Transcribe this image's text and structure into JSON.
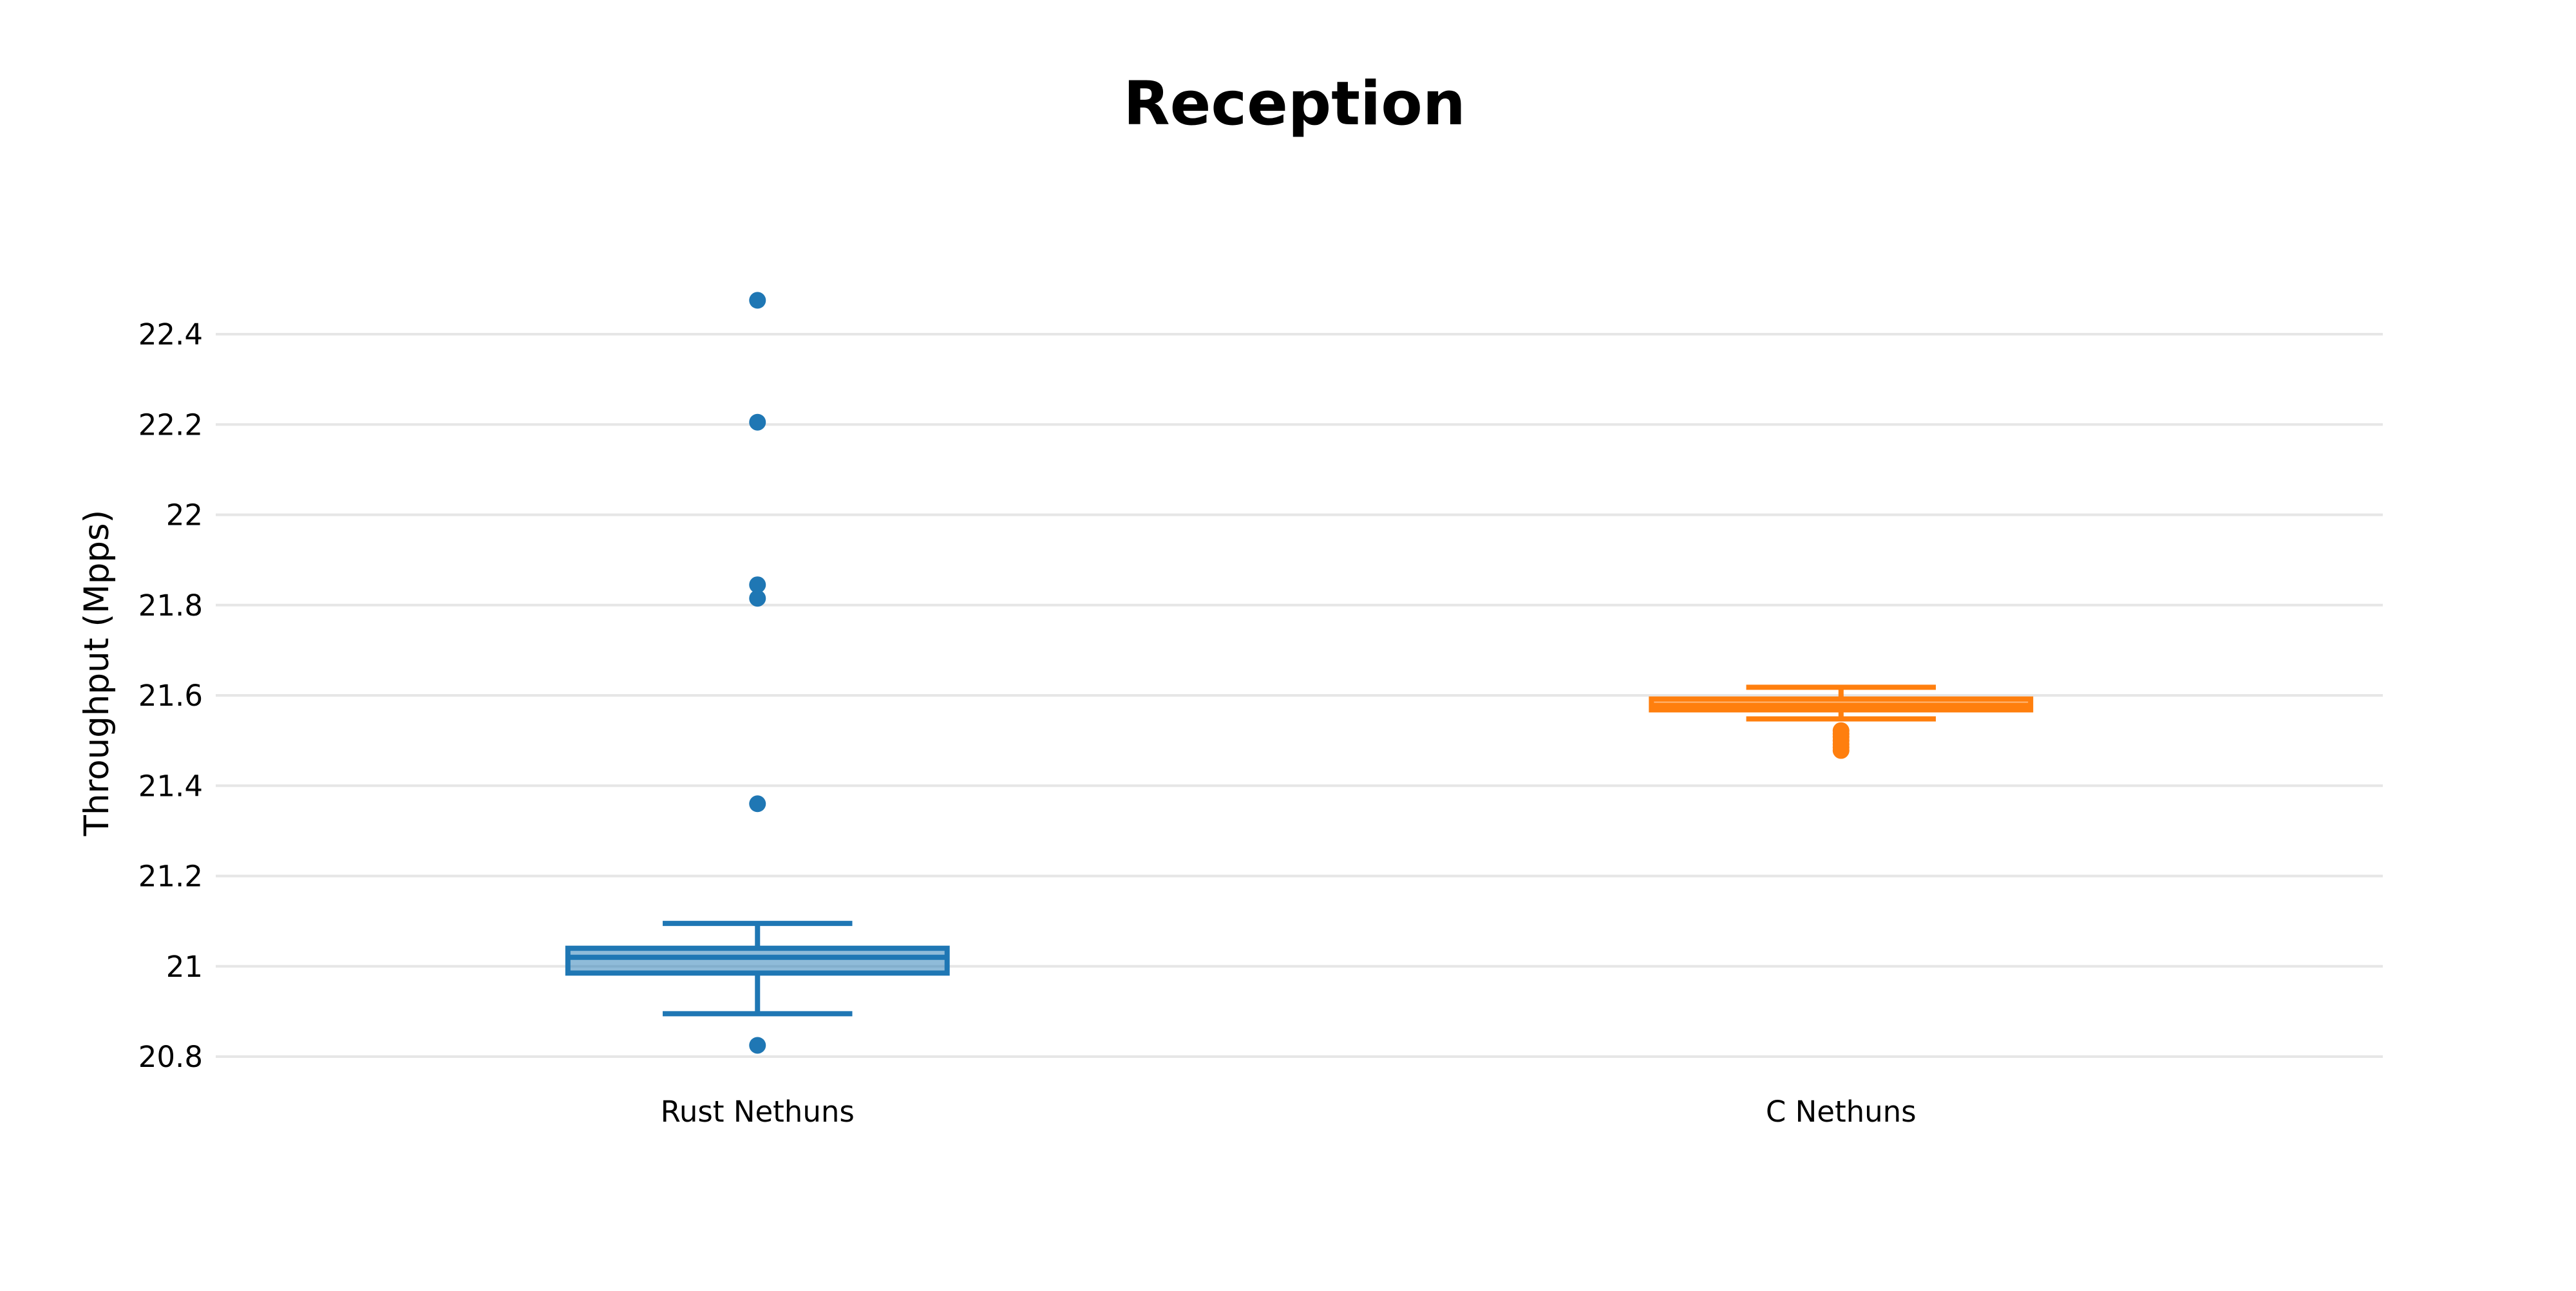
{
  "chart_data": {
    "type": "box",
    "title": "Reception",
    "xlabel": "",
    "ylabel": "Throughput (Mpps)",
    "ylim": [
      20.78,
      22.53
    ],
    "yticks": [
      20.8,
      21,
      21.2,
      21.4,
      21.6,
      21.8,
      22,
      22.2,
      22.4
    ],
    "ytick_labels": [
      "20.8",
      "21",
      "21.2",
      "21.4",
      "21.6",
      "21.8",
      "22",
      "22.2",
      "22.4"
    ],
    "grid": true,
    "legend": "none",
    "categories": [
      "Rust Nethuns",
      "C Nethuns"
    ],
    "series": [
      {
        "category": "Rust Nethuns",
        "color": "#1f77b4",
        "whisker_low": 20.895,
        "q1": 20.985,
        "median": 21.02,
        "q3": 21.04,
        "whisker_high": 21.095,
        "outliers": [
          20.825,
          21.36,
          21.815,
          21.845,
          22.205,
          22.475
        ]
      },
      {
        "category": "C Nethuns",
        "color": "#ff7f0e",
        "whisker_low": 21.548,
        "q1": 21.568,
        "median": 21.578,
        "q3": 21.592,
        "whisker_high": 21.618,
        "outliers": [
          21.478,
          21.485,
          21.492,
          21.5,
          21.508,
          21.515,
          21.522
        ]
      }
    ]
  }
}
